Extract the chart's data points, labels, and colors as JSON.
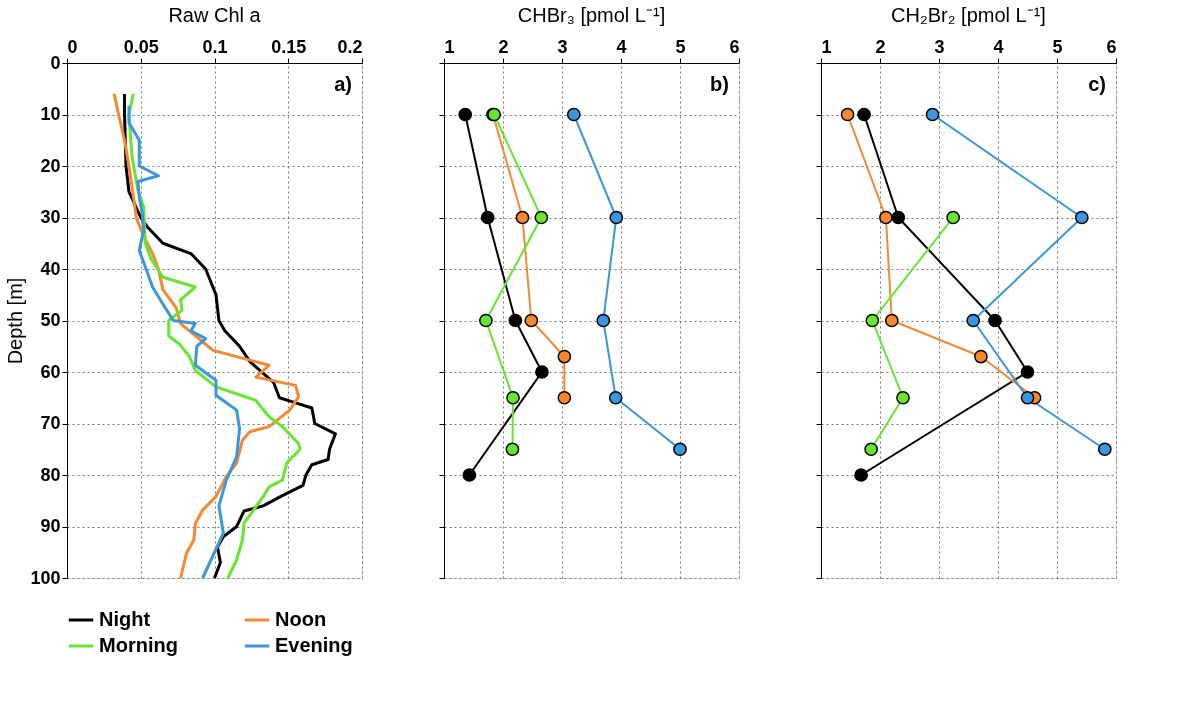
{
  "chart_data": [
    {
      "type": "line",
      "title": "Raw Chl a",
      "ylabel": "Depth [m]",
      "xlim": [
        0,
        0.2
      ],
      "xticks": [
        0,
        0.05,
        0.1,
        0.15,
        0.2
      ],
      "ylim": [
        100,
        0
      ],
      "yticks": [
        0,
        10,
        20,
        30,
        40,
        50,
        60,
        70,
        80,
        90,
        100
      ],
      "grid": true,
      "legend": "bottom",
      "marker": "none",
      "line_style": "solid",
      "annotations": [
        "a)"
      ],
      "series": [
        {
          "name": "Night",
          "color": "#000000",
          "x": [
            0.039,
            0.039,
            0.04,
            0.042,
            0.05,
            0.055,
            0.065,
            0.084,
            0.094,
            0.101,
            0.103,
            0.107,
            0.117,
            0.124,
            0.14,
            0.144,
            0.155,
            0.166,
            0.168,
            0.182,
            0.178,
            0.177,
            0.166,
            0.162,
            0.16,
            0.146,
            0.133,
            0.12,
            0.115,
            0.106,
            0.102,
            0.104,
            0.1
          ],
          "values": [
            6,
            10,
            20,
            25,
            30,
            32,
            35,
            37,
            40,
            45,
            50,
            52,
            55,
            58,
            62,
            65,
            66,
            67,
            70,
            72,
            75,
            77,
            78,
            80,
            82,
            84,
            86,
            87,
            90,
            92,
            94,
            97,
            100
          ]
        },
        {
          "name": "Noon",
          "color": "#f7882f",
          "x": [
            0.032,
            0.035,
            0.039,
            0.042,
            0.045,
            0.047,
            0.051,
            0.058,
            0.062,
            0.065,
            0.074,
            0.077,
            0.099,
            0.137,
            0.128,
            0.155,
            0.157,
            0.151,
            0.137,
            0.124,
            0.119,
            0.115,
            0.108,
            0.101,
            0.092,
            0.087,
            0.086,
            0.081,
            0.077
          ],
          "values": [
            6,
            10,
            15,
            20,
            26,
            30,
            33,
            37,
            40,
            44,
            47.5,
            50.6,
            55.8,
            58.7,
            61,
            62.6,
            64.8,
            67.4,
            70.6,
            71.6,
            73.2,
            77.7,
            80.3,
            84.2,
            86.8,
            89.4,
            92.6,
            95.2,
            100
          ]
        },
        {
          "name": "Morning",
          "color": "#66e62e",
          "x": [
            0.045,
            0.042,
            0.044,
            0.048,
            0.052,
            0.053,
            0.057,
            0.065,
            0.087,
            0.077,
            0.078,
            0.069,
            0.069,
            0.076,
            0.083,
            0.087,
            0.101,
            0.128,
            0.137,
            0.146,
            0.157,
            0.158,
            0.149,
            0.146,
            0.137,
            0.133,
            0.12,
            0.119,
            0.115,
            0.109
          ],
          "values": [
            6,
            10,
            18,
            24.6,
            28,
            35,
            38,
            41.6,
            43.5,
            46,
            48,
            50,
            53,
            54.5,
            57,
            59.7,
            62.9,
            65.5,
            68.7,
            70.6,
            73.9,
            75,
            77.7,
            81,
            82.3,
            84.2,
            89.4,
            92.6,
            96.5,
            100
          ]
        },
        {
          "name": "Evening",
          "color": "#3a96dd",
          "x": [
            0.042,
            0.042,
            0.049,
            0.049,
            0.062,
            0.048,
            0.049,
            0.051,
            0.052,
            0.049,
            0.054,
            0.058,
            0.065,
            0.072,
            0.087,
            0.084,
            0.094,
            0.088,
            0.087,
            0.101,
            0.101,
            0.115,
            0.117,
            0.115,
            0.108,
            0.103,
            0.106,
            0.092
          ],
          "values": [
            8.3,
            11.6,
            15,
            20,
            21.9,
            23,
            26,
            29.2,
            32.4,
            36.4,
            40.3,
            43.5,
            46.8,
            50,
            50.6,
            52,
            53.5,
            55,
            58.7,
            61.6,
            64.5,
            67.4,
            71,
            76.5,
            81,
            86,
            91.3,
            100
          ]
        }
      ]
    },
    {
      "type": "line",
      "title": "CHBr₃ [pmol L⁻¹]",
      "xlim": [
        1,
        6
      ],
      "xticks": [
        1,
        2,
        3,
        4,
        5,
        6
      ],
      "ylim": [
        100,
        0
      ],
      "yticks": [
        0,
        10,
        20,
        30,
        40,
        50,
        60,
        70,
        80,
        90,
        100
      ],
      "tick_labels": "x",
      "grid": true,
      "marker": "circle",
      "line_style": "solid",
      "annotations": [
        "b)"
      ],
      "series": [
        {
          "color": "#000000",
          "x": [
            1.36,
            1.74,
            2.21,
            2.66,
            1.43
          ],
          "values": [
            10,
            30,
            50,
            60,
            80
          ]
        },
        {
          "color": "#f7882f",
          "x": [
            1.83,
            2.33,
            2.48,
            3.04,
            3.04
          ],
          "values": [
            10,
            30,
            50,
            57,
            65
          ]
        },
        {
          "color": "#66e62e",
          "x": [
            1.85,
            2.65,
            1.71,
            2.17,
            2.16
          ],
          "values": [
            10,
            30,
            50,
            65,
            75
          ]
        },
        {
          "color": "#3a96dd",
          "x": [
            3.2,
            3.92,
            3.7,
            3.91,
            5.0
          ],
          "values": [
            10,
            30,
            50,
            65,
            75
          ]
        }
      ]
    },
    {
      "type": "line",
      "title": "CH₂Br₂ [pmol L⁻¹]",
      "xlim": [
        1,
        6
      ],
      "xticks": [
        1,
        2,
        3,
        4,
        5,
        6
      ],
      "ylim": [
        100,
        0
      ],
      "yticks": [
        0,
        10,
        20,
        30,
        40,
        50,
        60,
        70,
        80,
        90,
        100
      ],
      "tick_labels": "x",
      "grid": true,
      "marker": "circle",
      "line_style": "solid",
      "annotations": [
        "c)"
      ],
      "series": [
        {
          "color": "#000000",
          "x": [
            1.73,
            2.31,
            3.95,
            4.5,
            1.68
          ],
          "values": [
            10,
            30,
            50,
            60,
            80
          ]
        },
        {
          "color": "#f7882f",
          "x": [
            1.45,
            2.1,
            2.2,
            3.71,
            4.62
          ],
          "values": [
            10,
            30,
            50,
            57,
            65
          ]
        },
        {
          "color": "#66e62e",
          "x": [
            3.24,
            1.87,
            2.39,
            1.85
          ],
          "values": [
            30,
            50,
            65,
            75
          ]
        },
        {
          "color": "#3a96dd",
          "x": [
            2.89,
            5.42,
            3.58,
            4.5,
            5.81
          ],
          "values": [
            10,
            30,
            50,
            65,
            75
          ]
        }
      ]
    }
  ]
}
